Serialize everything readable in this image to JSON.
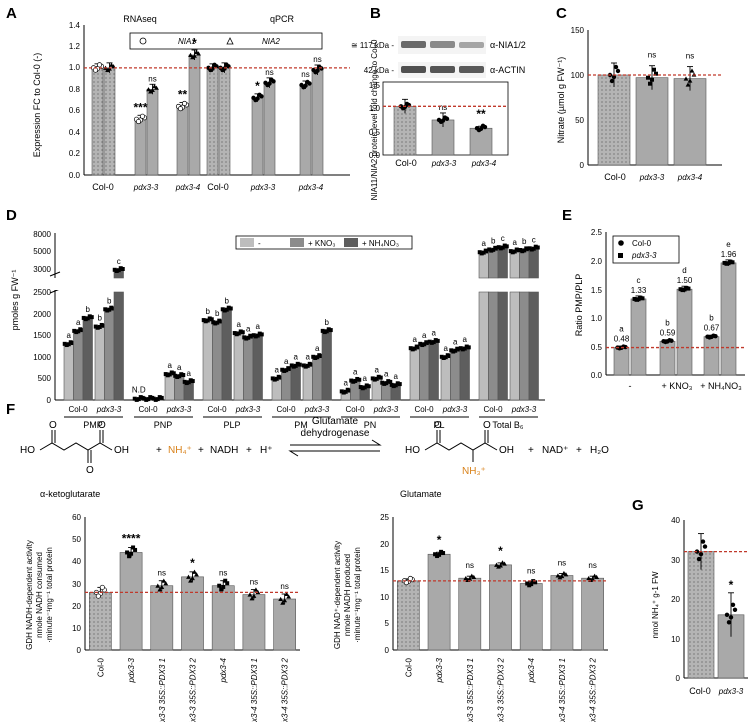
{
  "panels": {
    "A": "A",
    "B": "B",
    "C": "C",
    "D": "D",
    "E": "E",
    "F": "F",
    "G": "G"
  },
  "colors": {
    "bar_gray": "#a9a9a9",
    "bar_light": "#bdbdbd",
    "bar_mid": "#8c8c8c",
    "bar_dark": "#5e5e5e",
    "control_dotted": "#b0b0b0",
    "ref_line": "#c0392b",
    "nh4_orange": "#d9821b"
  },
  "chart_data": [
    {
      "id": "A",
      "type": "bar",
      "ylabel": "Expression FC to Col-0 (-)",
      "ylim": [
        0,
        1.4
      ],
      "yticks": [
        "0.0",
        "0.2",
        "0.4",
        "0.6",
        "0.8",
        "1.0",
        "1.2",
        "1.4"
      ],
      "section_titles": [
        "RNAseq",
        "qPCR"
      ],
      "legend": [
        "NIA1",
        "NIA2"
      ],
      "categories": [
        "Col-0",
        "pdx3-3",
        "pdx3-4",
        "Col-0",
        "pdx3-3",
        "pdx3-4"
      ],
      "series": [
        {
          "name": "NIA1",
          "values": [
            1.0,
            0.52,
            0.64,
            1.0,
            0.72,
            0.84
          ]
        },
        {
          "name": "NIA2",
          "values": [
            1.0,
            0.8,
            1.12,
            1.0,
            0.86,
            0.98
          ]
        }
      ],
      "sig": [
        [
          "",
          "***",
          "**",
          "",
          "*",
          "ns"
        ],
        [
          "",
          "ns",
          "*",
          "",
          "ns",
          "ns"
        ]
      ],
      "ref_line": 1.0
    },
    {
      "id": "B",
      "type": "bar",
      "blot_labels": [
        "≅ 117 kDa -",
        "42 kDa -"
      ],
      "antibodies": [
        "α-NIA1/2",
        "α-ACTIN"
      ],
      "ylabel": "NIA11/NIA2 protein level fold change to Col-0",
      "yticks": [
        "0.0",
        "0.5",
        "1.0",
        "1.5"
      ],
      "ylim": [
        0,
        1.5
      ],
      "categories": [
        "Col-0",
        "pdx3-3",
        "pdx3-4"
      ],
      "values": [
        1.0,
        0.72,
        0.55
      ],
      "sig": [
        "",
        "ns",
        "**"
      ],
      "ref_line": 1.0
    },
    {
      "id": "C",
      "type": "bar",
      "ylabel": "Nitrate (µmol g FW⁻¹)",
      "ylim": [
        0,
        150
      ],
      "yticks": [
        "0",
        "50",
        "100",
        "150"
      ],
      "categories": [
        "Col-0",
        "pdx3-3",
        "pdx3-4"
      ],
      "values": [
        100,
        97,
        96
      ],
      "sig": [
        "",
        "ns",
        "ns"
      ],
      "ref_line": 100
    },
    {
      "id": "D",
      "type": "bar",
      "ylabel": "pmoles g FW⁻¹",
      "yticks_upper": [
        "3000",
        "5000",
        "8000"
      ],
      "yticks_lower": [
        "0",
        "500",
        "1000",
        "1500",
        "2000",
        "2500"
      ],
      "legend": [
        "-",
        "+ KNO₃",
        "+ NH₄NO₃"
      ],
      "groups": [
        "PMP",
        "PNP",
        "PLP",
        "PM",
        "PN",
        "PL",
        "Total B₆"
      ],
      "genotypes": [
        "Col-0",
        "pdx3-3"
      ],
      "values": [
        [
          [
            1300,
            1600,
            1900
          ],
          [
            1700,
            2100,
            3200
          ]
        ],
        [
          [
            30,
            30,
            30
          ],
          [
            600,
            560,
            420
          ]
        ],
        [
          [
            1850,
            1800,
            2100
          ],
          [
            1550,
            1450,
            1500
          ]
        ],
        [
          [
            500,
            700,
            800
          ],
          [
            800,
            1000,
            1600
          ]
        ],
        [
          [
            200,
            450,
            300
          ],
          [
            500,
            400,
            350
          ]
        ],
        [
          [
            1200,
            1300,
            1350
          ],
          [
            1000,
            1150,
            1200
          ]
        ],
        [
          [
            4800,
            5100,
            5500
          ],
          [
            4900,
            5000,
            5300
          ]
        ]
      ],
      "letters": [
        [
          [
            "a",
            "a",
            "b"
          ],
          [
            "b",
            "b",
            "c"
          ]
        ],
        [
          [
            "N.D",
            "",
            ""
          ],
          [
            "a",
            "a",
            "a"
          ]
        ],
        [
          [
            "b",
            "b",
            "b"
          ],
          [
            "a",
            "a",
            "a"
          ]
        ],
        [
          [
            "a",
            "a",
            "a"
          ],
          [
            "a",
            "a",
            "b"
          ]
        ],
        [
          [
            "a",
            "a",
            "a"
          ],
          [
            "a",
            "a",
            "a"
          ]
        ],
        [
          [
            "a",
            "a",
            "a"
          ],
          [
            "a",
            "a",
            "a"
          ]
        ],
        [
          [
            "a",
            "b",
            "c"
          ],
          [
            "a",
            "b",
            "c"
          ]
        ]
      ]
    },
    {
      "id": "E",
      "type": "bar",
      "ylabel": "Ratio PMP/PLP",
      "ylim": [
        0,
        2.5
      ],
      "yticks": [
        "0.0",
        "0.5",
        "1.0",
        "1.5",
        "2.0",
        "2.5"
      ],
      "legend": [
        "Col-0",
        "pdx3-3"
      ],
      "categories": [
        "-",
        "+ KNO₃",
        "+ NH₄NO₃"
      ],
      "series": [
        {
          "name": "Col-0",
          "values": [
            0.48,
            0.59,
            0.67
          ]
        },
        {
          "name": "pdx3-3",
          "values": [
            1.33,
            1.5,
            1.96
          ]
        }
      ],
      "value_labels": [
        [
          "0.48",
          "1.33"
        ],
        [
          "0.59",
          "1.50"
        ],
        [
          "0.67",
          "1.96"
        ]
      ],
      "letters": [
        [
          "a",
          "c"
        ],
        [
          "b",
          "d"
        ],
        [
          "b",
          "e"
        ]
      ],
      "ref_line": 0.48
    },
    {
      "id": "F1",
      "type": "bar",
      "title": "α-ketoglutarate",
      "ylabel": [
        "GDH NADH-dependent activity",
        "nmole NADH consumed",
        "·minute⁻¹mg⁻¹ total protein"
      ],
      "ylim": [
        0,
        60
      ],
      "yticks": [
        "0",
        "10",
        "20",
        "30",
        "40",
        "50",
        "60"
      ],
      "categories": [
        "Col-0",
        "pdx3-3",
        "pdx3-3 35S::PDX3 1",
        "pdx3-3 35S::PDX3 2",
        "pdx3-4",
        "pdx3-4 35S::PDX3 1",
        "pdx3-4 35S::PDX3 2"
      ],
      "values": [
        26,
        44,
        29,
        33,
        29,
        25,
        23
      ],
      "sig": [
        "",
        "****",
        "ns",
        "*",
        "ns",
        "ns",
        "ns"
      ],
      "ref_line": 26
    },
    {
      "id": "F2",
      "type": "bar",
      "title": "Glutamate",
      "ylabel": [
        "GDH NAD⁺-dependent activity",
        "nmole NADH produced",
        "·minute⁻¹mg⁻¹ total protein"
      ],
      "ylim": [
        0,
        25
      ],
      "yticks": [
        "0",
        "5",
        "10",
        "15",
        "20",
        "25"
      ],
      "categories": [
        "Col-0",
        "pdx3-3",
        "pdx3-3 35S::PDX3 1",
        "pdx3-3 35S::PDX3 2",
        "pdx3-4",
        "pdx3-4 35S::PDX3 1",
        "pdx3-4 35S::PDX3 2"
      ],
      "values": [
        13,
        18,
        13.5,
        16,
        12.5,
        14,
        13.5
      ],
      "sig": [
        "",
        "*",
        "ns",
        "*",
        "ns",
        "ns",
        "ns"
      ],
      "ref_line": 13
    },
    {
      "id": "G",
      "type": "bar",
      "ylabel": "nmol NH₄⁺ g-1 FW",
      "ylim": [
        0,
        40
      ],
      "yticks": [
        "0",
        "10",
        "20",
        "30",
        "40"
      ],
      "categories": [
        "Col-0",
        "pdx3-3"
      ],
      "values": [
        32,
        16
      ],
      "sig": [
        "",
        "*"
      ],
      "ref_line": 32
    }
  ],
  "reaction": {
    "plus1": "+",
    "nh4": "NH₄⁺",
    "plus2": "+",
    "nadh": "NADH",
    "plus3": "+",
    "h": "H⁺",
    "enzyme_line1": "Glutamate",
    "enzyme_line2": "dehydrogenase",
    "plus4": "+",
    "nad": "NAD⁺",
    "plus5": "+",
    "h2o": "H₂O",
    "ho_left": "HO",
    "oh_left": "OH",
    "o_left": "O",
    "ho_right": "HO",
    "oh_right": "OH",
    "o_right": "O",
    "nh3": "NH₃⁺"
  }
}
